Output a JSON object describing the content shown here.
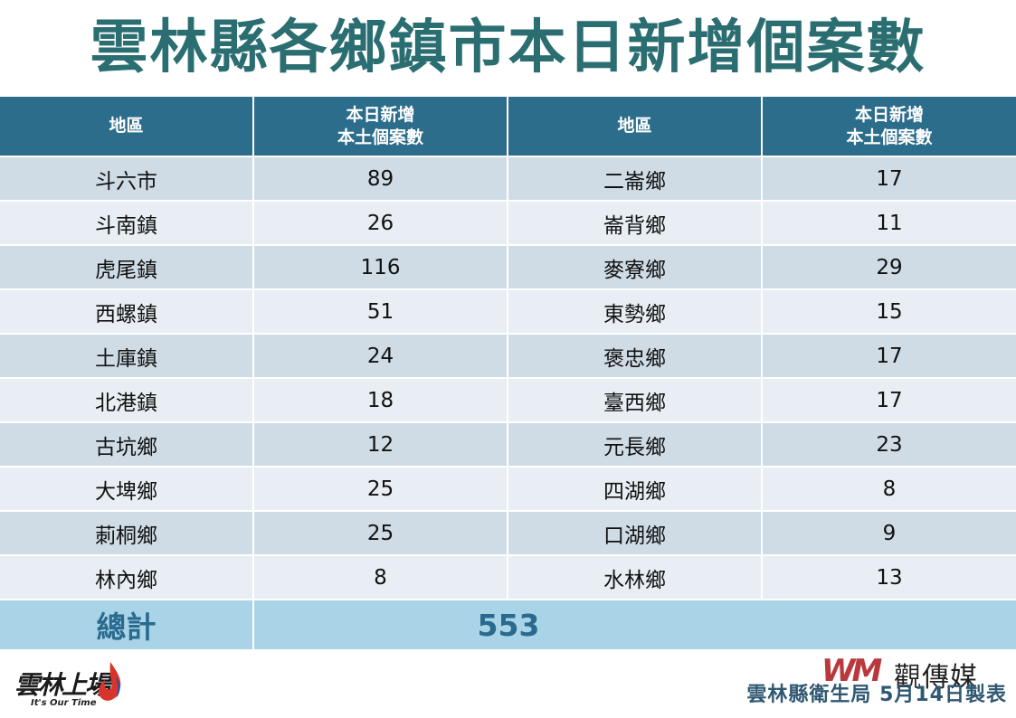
{
  "title": "雲林縣各鄉鎮市本日新增個案數",
  "table": {
    "headers": [
      {
        "line1": "地區",
        "line2": ""
      },
      {
        "line1": "本日新增",
        "line2": "本土個案數"
      },
      {
        "line1": "地區",
        "line2": ""
      },
      {
        "line1": "本日新增",
        "line2": "本土個案數"
      }
    ],
    "rows": [
      {
        "area_left": "斗六市",
        "count_left": "89",
        "area_right": "二崙鄉",
        "count_right": "17"
      },
      {
        "area_left": "斗南鎮",
        "count_left": "26",
        "area_right": "崙背鄉",
        "count_right": "11"
      },
      {
        "area_left": "虎尾鎮",
        "count_left": "116",
        "area_right": "麥寮鄉",
        "count_right": "29"
      },
      {
        "area_left": "西螺鎮",
        "count_left": "51",
        "area_right": "東勢鄉",
        "count_right": "15"
      },
      {
        "area_left": "土庫鎮",
        "count_left": "24",
        "area_right": "褒忠鄉",
        "count_right": "17"
      },
      {
        "area_left": "北港鎮",
        "count_left": "18",
        "area_right": "臺西鄉",
        "count_right": "17"
      },
      {
        "area_left": "古坑鄉",
        "count_left": "12",
        "area_right": "元長鄉",
        "count_right": "23"
      },
      {
        "area_left": "大埤鄉",
        "count_left": "25",
        "area_right": "四湖鄉",
        "count_right": "8"
      },
      {
        "area_left": "莿桐鄉",
        "count_left": "25",
        "area_right": "口湖鄉",
        "count_right": "9"
      },
      {
        "area_left": "林內鄉",
        "count_left": "8",
        "area_right": "水林鄉",
        "count_right": "13"
      }
    ],
    "total_label": "總計",
    "total_value": "553"
  },
  "logo_left": {
    "script": "雲林上場",
    "tagline": "It's Our Time"
  },
  "media_logo": {
    "mark": "WM",
    "name": "觀傳媒"
  },
  "credit": "雲林縣衛生局 5月14日製表",
  "colors": {
    "title": "#2a6e72",
    "header_bg": "#2c6d8c",
    "row_odd": "#cfdce6",
    "row_even": "#e8eef3",
    "total_bg": "#a9d3e6",
    "total_text": "#2a6a8f",
    "credit": "#2f5872"
  }
}
